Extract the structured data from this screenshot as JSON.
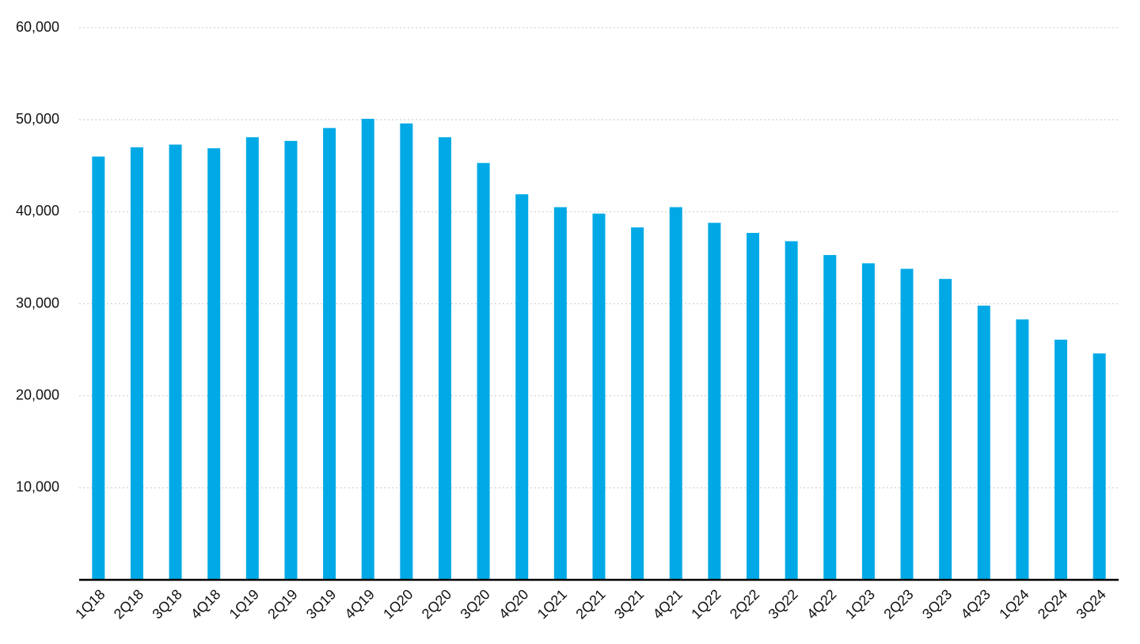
{
  "chart_data": {
    "type": "bar",
    "categories": [
      "1Q18",
      "2Q18",
      "3Q18",
      "4Q18",
      "1Q19",
      "2Q19",
      "3Q19",
      "4Q19",
      "1Q20",
      "2Q20",
      "3Q20",
      "4Q20",
      "1Q21",
      "2Q21",
      "3Q21",
      "4Q21",
      "1Q22",
      "2Q22",
      "3Q22",
      "4Q22",
      "1Q23",
      "2Q23",
      "3Q23",
      "4Q23",
      "1Q24",
      "2Q24",
      "3Q24"
    ],
    "values": [
      46000,
      47000,
      47300,
      46900,
      48100,
      47700,
      49100,
      50100,
      49600,
      48100,
      45300,
      41900,
      40500,
      39800,
      38300,
      40500,
      38800,
      37700,
      36800,
      35300,
      34400,
      33800,
      32700,
      29800,
      28300,
      26100,
      24600
    ],
    "color": "#00a9e6",
    "ylim": [
      0,
      60000
    ],
    "yticks": [
      {
        "value": 10000,
        "label": "10,000"
      },
      {
        "value": 20000,
        "label": "20,000"
      },
      {
        "value": 30000,
        "label": "30,000"
      },
      {
        "value": 40000,
        "label": "40,000"
      },
      {
        "value": 50000,
        "label": "50,000"
      },
      {
        "value": 60000,
        "label": "60,000"
      }
    ],
    "grid": true
  }
}
